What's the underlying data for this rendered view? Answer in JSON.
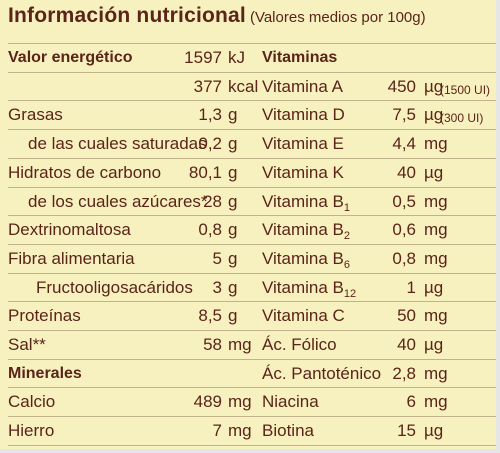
{
  "title": "Información nutricional",
  "subtitle": "(Valores medios por 100g)",
  "left_rows": [
    {
      "label": "Valor energético",
      "value": "1597",
      "unit": "kJ",
      "bold": true
    },
    {
      "label": "",
      "value": "377",
      "unit": "kcal"
    },
    {
      "label": "Grasas",
      "value": "1,3",
      "unit": "g"
    },
    {
      "label": "de las cuales saturadas",
      "value": "0,2",
      "unit": "g"
    },
    {
      "label": "Hidratos de carbono",
      "value": "80,1",
      "unit": "g"
    },
    {
      "label": "de los cuales azúcares*",
      "value": "28",
      "unit": "g"
    },
    {
      "label": "Dextrinomaltosa",
      "value": "0,8",
      "unit": "g"
    },
    {
      "label": "Fibra alimentaria",
      "value": "5",
      "unit": "g"
    },
    {
      "label": "Fructooligosacáridos",
      "value": "3",
      "unit": "g"
    },
    {
      "label": "Proteínas",
      "value": "8,5",
      "unit": "g"
    },
    {
      "label": "Sal**",
      "value": "58",
      "unit": "mg"
    },
    {
      "label": "Minerales",
      "value": "",
      "unit": "",
      "bold": true
    },
    {
      "label": "Calcio",
      "value": "489",
      "unit": "mg"
    },
    {
      "label": "Hierro",
      "value": "7",
      "unit": "mg"
    }
  ],
  "right_rows": [
    {
      "label": "Vitaminas",
      "label_sub": "",
      "value": "",
      "unit": "",
      "extra": "",
      "bold": true
    },
    {
      "label": "Vitamina A",
      "label_sub": "",
      "value": "450",
      "unit": "µg",
      "extra": "(1500 UI)"
    },
    {
      "label": "Vitamina D",
      "label_sub": "",
      "value": "7,5",
      "unit": "µg",
      "extra": "(300 UI)"
    },
    {
      "label": "Vitamina E",
      "label_sub": "",
      "value": "4,4",
      "unit": "mg",
      "extra": ""
    },
    {
      "label": "Vitamina K",
      "label_sub": "",
      "value": "40",
      "unit": "µg",
      "extra": ""
    },
    {
      "label": "Vitamina B",
      "label_sub": "1",
      "value": "0,5",
      "unit": "mg",
      "extra": ""
    },
    {
      "label": "Vitamina B",
      "label_sub": "2",
      "value": "0,6",
      "unit": "mg",
      "extra": ""
    },
    {
      "label": "Vitamina B",
      "label_sub": "6",
      "value": "0,8",
      "unit": "mg",
      "extra": ""
    },
    {
      "label": "Vitamina B",
      "label_sub": "12",
      "value": "1",
      "unit": "µg",
      "extra": ""
    },
    {
      "label": "Vitamina C",
      "label_sub": "",
      "value": "50",
      "unit": "mg",
      "extra": ""
    },
    {
      "label": "Ác. Fólico",
      "label_sub": "",
      "value": "40",
      "unit": "µg",
      "extra": ""
    },
    {
      "label": "Ác. Pantoténico",
      "label_sub": "",
      "value": "2,8",
      "unit": "mg",
      "extra": ""
    },
    {
      "label": "Niacina",
      "label_sub": "",
      "value": "6",
      "unit": "mg",
      "extra": ""
    },
    {
      "label": "Biotina",
      "label_sub": "",
      "value": "15",
      "unit": "µg",
      "extra": ""
    }
  ],
  "colors": {
    "background": "#f7f1c0",
    "text": "#5a2418",
    "rule": "#c0b28a"
  }
}
